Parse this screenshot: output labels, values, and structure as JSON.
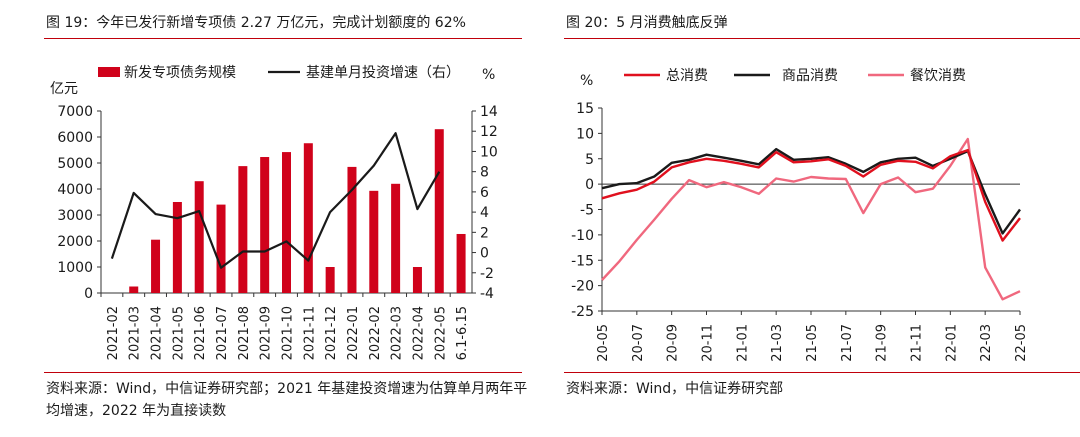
{
  "left": {
    "title": "图 19：今年已发行新增专项债 2.27 万亿元，完成计划额度的 62%",
    "source": "资料来源：Wind，中信证券研究部；2021 年基建投资增速为估算单月两年平均增速，2022 年为直接读数"
  },
  "right": {
    "title": "图 20：5 月消费触底反弹",
    "source": "资料来源：Wind，中信证券研究部"
  },
  "colors": {
    "rule": "#c0000b",
    "bar": "#d0021b",
    "black": "#1a1a1a",
    "red": "#e0101e",
    "pink": "#f0687e"
  },
  "chart_data": [
    {
      "type": "bar",
      "categories": [
        "2021-02",
        "2021-03",
        "2021-04",
        "2021-05",
        "2021-06",
        "2021-07",
        "2021-08",
        "2021-09",
        "2021-10",
        "2021-11",
        "2021-12",
        "2022-01",
        "2022-02",
        "2022-03",
        "2022-04",
        "2022-05",
        "6.1-6.15"
      ],
      "series": [
        {
          "name": "新发专项债务规模",
          "type": "bar",
          "axis": "left",
          "color": "#d0021b",
          "values": [
            0,
            250,
            2050,
            3500,
            4300,
            3400,
            4880,
            5230,
            5420,
            5760,
            1000,
            4850,
            3930,
            4200,
            1000,
            6300,
            2270
          ]
        },
        {
          "name": "基建单月投资增速（右）",
          "type": "line",
          "axis": "right",
          "color": "#1a1a1a",
          "values": [
            -0.6,
            5.9,
            3.8,
            3.4,
            4.1,
            -1.5,
            0.1,
            0.1,
            1.1,
            -0.8,
            4.0,
            6.2,
            8.6,
            11.8,
            4.3,
            8.0,
            null
          ]
        }
      ],
      "ylabel": "亿元",
      "y2label": "%",
      "ylim": [
        0,
        7000
      ],
      "y2lim": [
        -4,
        14
      ],
      "yticks": [
        "0",
        "1000",
        "2000",
        "3000",
        "4000",
        "5000",
        "6000",
        "7000"
      ],
      "y2ticks": [
        "-4",
        "-2",
        "0",
        "2",
        "4",
        "6",
        "8",
        "10",
        "12",
        "14"
      ],
      "legend": "top"
    },
    {
      "type": "line",
      "categories": [
        "20-05",
        "20-06",
        "20-07",
        "20-08",
        "20-09",
        "20-10",
        "20-11",
        "20-12",
        "21-01",
        "21-02",
        "21-03",
        "21-04",
        "21-05",
        "21-06",
        "21-07",
        "21-08",
        "21-09",
        "21-10",
        "21-11",
        "21-12",
        "22-01",
        "22-02",
        "22-03",
        "22-04",
        "22-05"
      ],
      "xticks": [
        "20-05",
        "20-07",
        "20-09",
        "20-11",
        "21-01",
        "21-03",
        "21-05",
        "21-07",
        "21-09",
        "21-11",
        "22-01",
        "22-03",
        "22-05"
      ],
      "series": [
        {
          "name": "总消费",
          "color": "#e0101e",
          "values": [
            -2.8,
            -1.8,
            -1.1,
            0.5,
            3.3,
            4.3,
            5.0,
            4.6,
            4.0,
            3.3,
            6.3,
            4.3,
            4.5,
            4.9,
            3.6,
            1.5,
            3.8,
            4.6,
            4.4,
            3.1,
            5.5,
            6.7,
            -3.5,
            -11.1,
            -6.7
          ]
        },
        {
          "name": "商品消费",
          "color": "#1a1a1a",
          "values": [
            -0.8,
            0.0,
            0.2,
            1.5,
            4.2,
            4.8,
            5.8,
            5.2,
            4.6,
            3.9,
            6.9,
            4.8,
            5.0,
            5.3,
            4.0,
            2.4,
            4.3,
            5.0,
            5.2,
            3.6,
            5.0,
            6.5,
            -2.0,
            -9.7,
            -5.0
          ]
        },
        {
          "name": "餐饮消费",
          "color": "#f0687e",
          "values": [
            -18.9,
            -15.2,
            -11.0,
            -7.0,
            -2.9,
            0.8,
            -0.6,
            0.4,
            -0.6,
            -1.9,
            1.1,
            0.5,
            1.4,
            1.1,
            1.0,
            -5.7,
            0.0,
            1.3,
            -1.6,
            -0.9,
            3.6,
            8.9,
            -16.4,
            -22.7,
            -21.1
          ]
        }
      ],
      "ylabel": "%",
      "ylim": [
        -25,
        15
      ],
      "yticks": [
        "-25",
        "-20",
        "-15",
        "-10",
        "-5",
        "0",
        "5",
        "10",
        "15"
      ],
      "legend": "top"
    }
  ]
}
